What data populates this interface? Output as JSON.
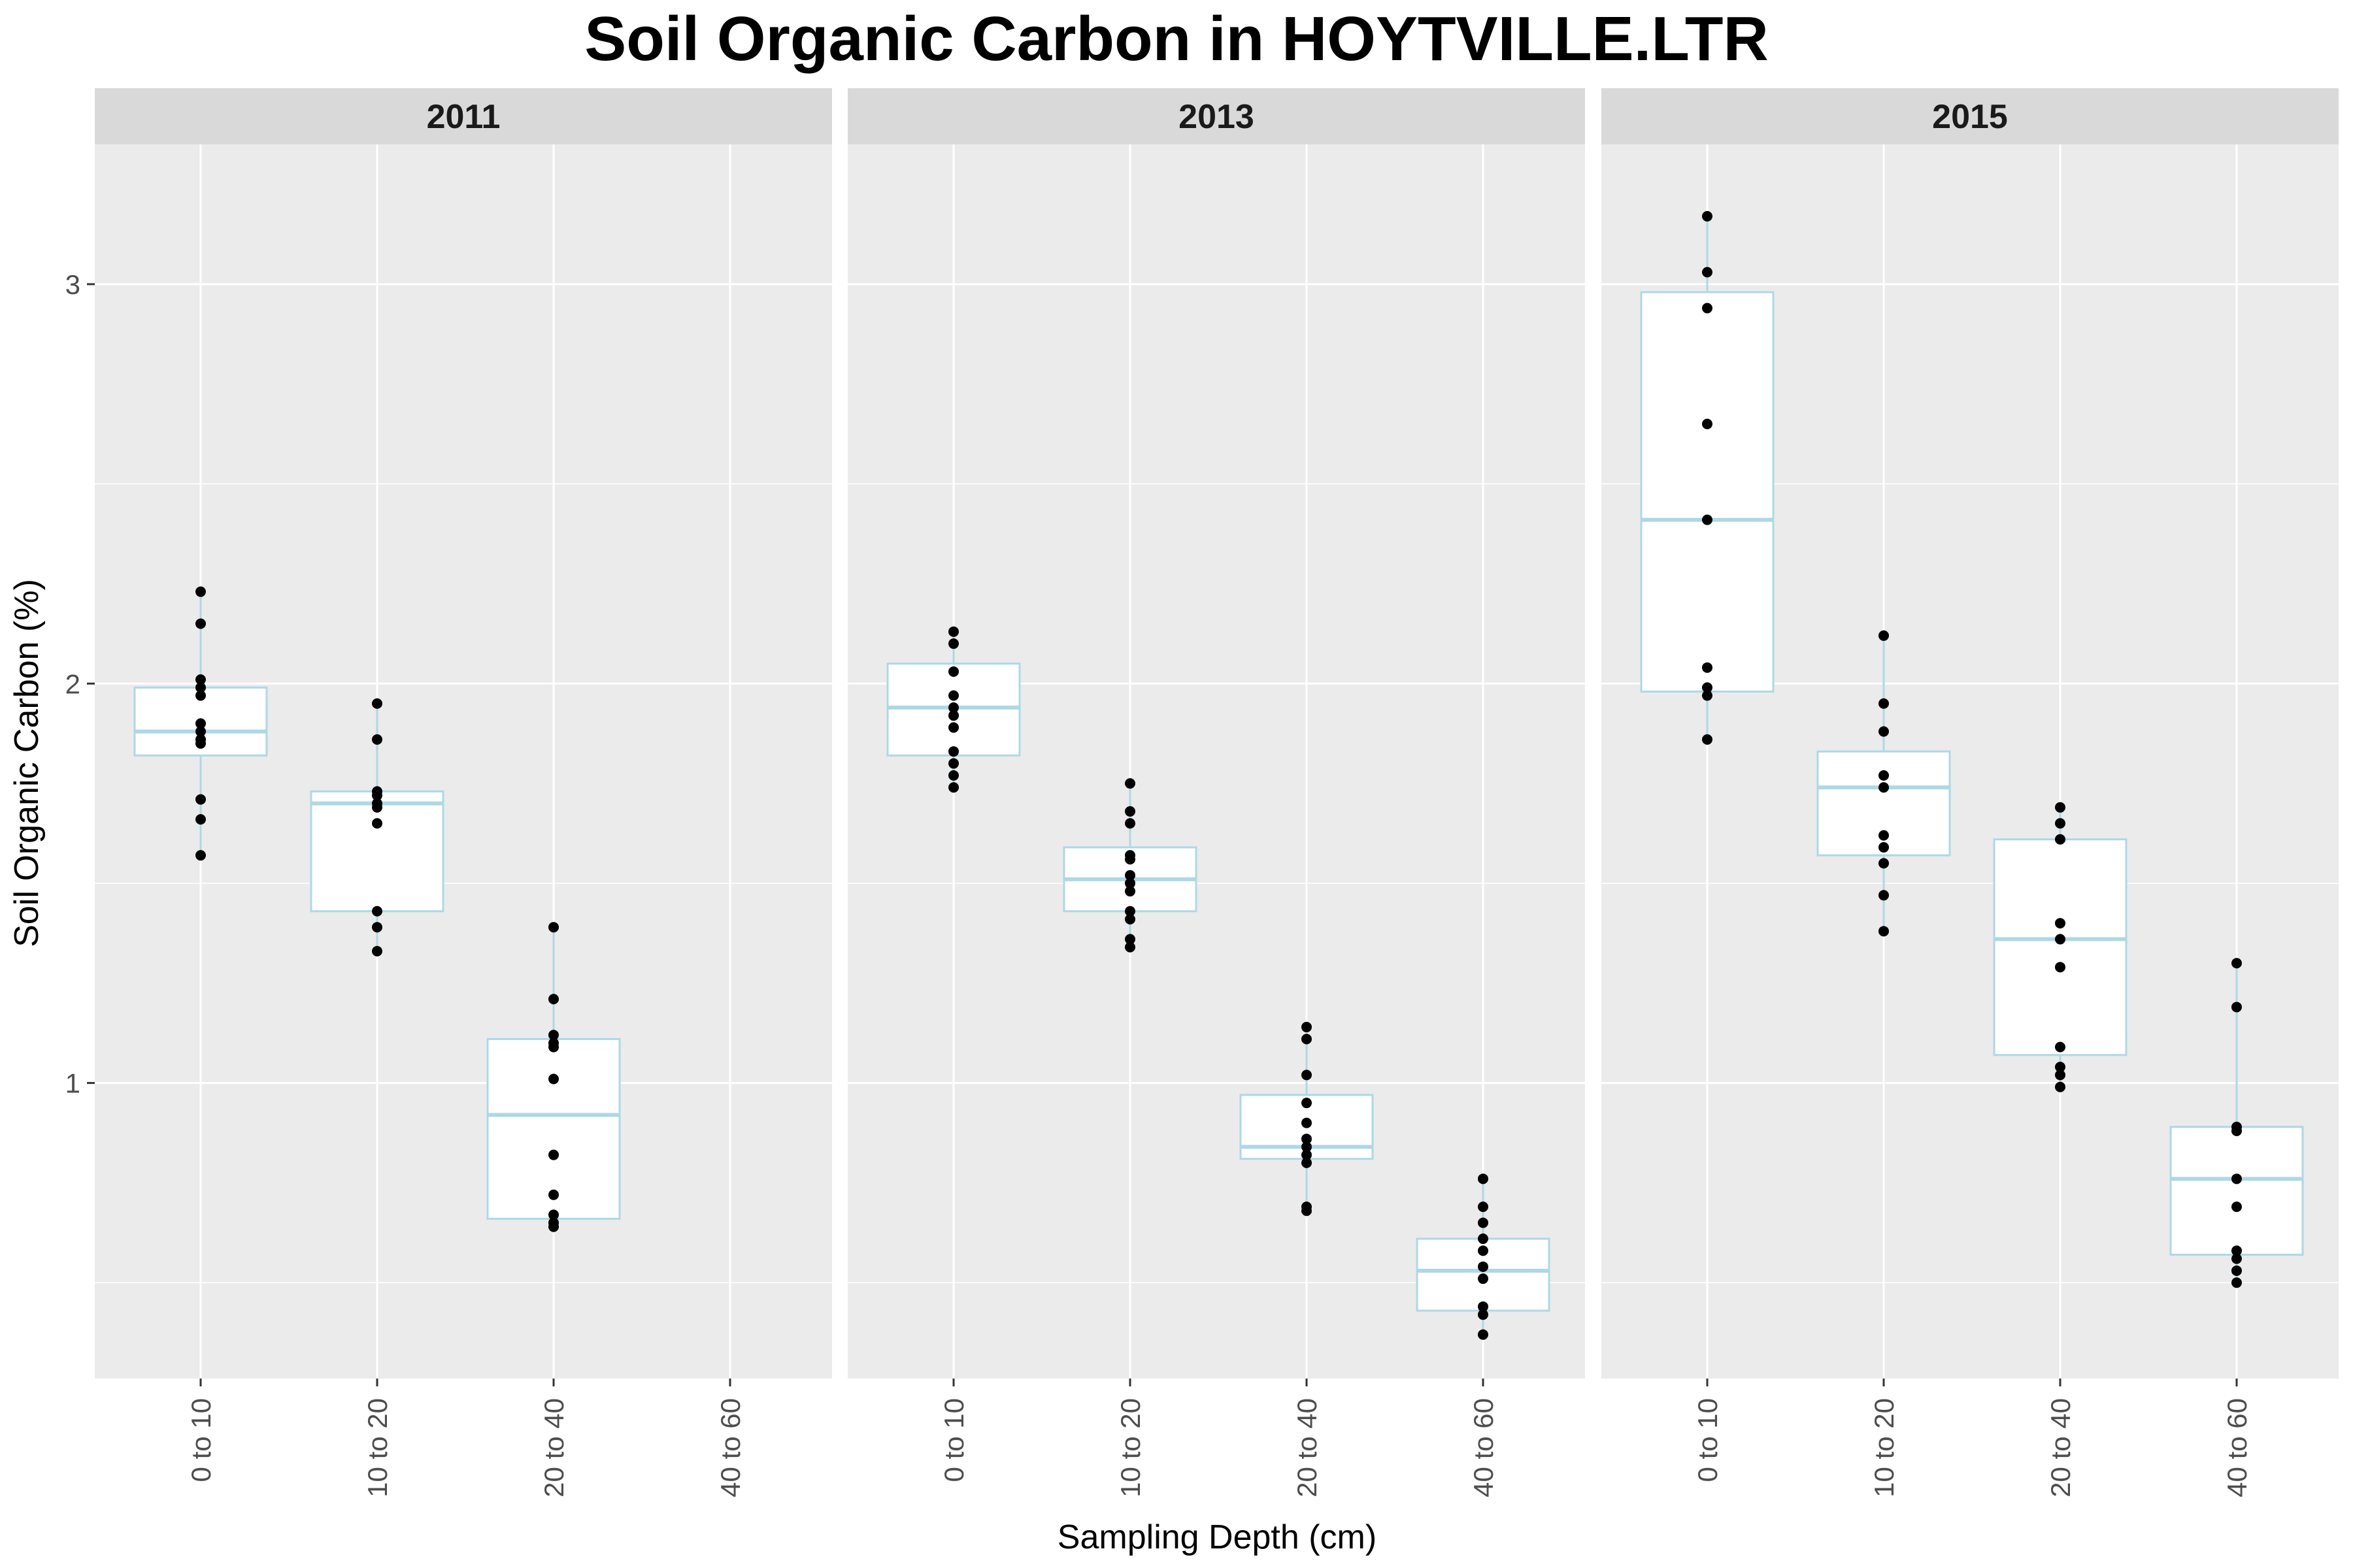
{
  "chart_data": {
    "type": "boxplot",
    "title": "Soil Organic Carbon in HOYTVILLE.LTR",
    "xlabel": "Sampling Depth (cm)",
    "ylabel": "Soil Organic Carbon (%)",
    "categories": [
      "0 to 10",
      "10 to 20",
      "20 to 40",
      "40 to 60"
    ],
    "ylim": [
      0.26,
      3.35
    ],
    "yticks": [
      1,
      2,
      3
    ],
    "colors": {
      "panel_background": "#ebebeb",
      "strip_background": "#d9d9d9",
      "gridline": "#ffffff",
      "box_outline": "#add8e6",
      "box_fill": "#ffffff",
      "points": "#000000"
    },
    "panels": [
      {
        "facet": "2011",
        "boxes": [
          {
            "category": "0 to 10",
            "lower_whisker": 1.57,
            "q1": 1.82,
            "median": 1.88,
            "q3": 1.99,
            "upper_whisker": 2.23,
            "points": [
              2.23,
              2.15,
              2.01,
              1.99,
              1.97,
              1.9,
              1.88,
              1.86,
              1.85,
              1.71,
              1.66,
              1.57
            ]
          },
          {
            "category": "10 to 20",
            "lower_whisker": 1.33,
            "q1": 1.43,
            "median": 1.7,
            "q3": 1.73,
            "upper_whisker": 1.95,
            "points": [
              1.95,
              1.86,
              1.73,
              1.72,
              1.7,
              1.69,
              1.65,
              1.43,
              1.39,
              1.33
            ]
          },
          {
            "category": "20 to 40",
            "lower_whisker": 0.64,
            "q1": 0.66,
            "median": 0.92,
            "q3": 1.11,
            "upper_whisker": 1.39,
            "points": [
              1.39,
              1.21,
              1.12,
              1.1,
              1.09,
              1.01,
              0.82,
              0.72,
              0.67,
              0.65,
              0.64
            ]
          },
          {
            "category": "40 to 60",
            "points": []
          }
        ]
      },
      {
        "facet": "2013",
        "boxes": [
          {
            "category": "0 to 10",
            "lower_whisker": 1.74,
            "q1": 1.82,
            "median": 1.94,
            "q3": 2.05,
            "upper_whisker": 2.13,
            "points": [
              2.13,
              2.1,
              2.03,
              1.97,
              1.94,
              1.92,
              1.89,
              1.83,
              1.8,
              1.77,
              1.74
            ]
          },
          {
            "category": "10 to 20",
            "lower_whisker": 1.34,
            "q1": 1.43,
            "median": 1.51,
            "q3": 1.59,
            "upper_whisker": 1.75,
            "points": [
              1.75,
              1.68,
              1.65,
              1.57,
              1.56,
              1.52,
              1.5,
              1.48,
              1.43,
              1.41,
              1.36,
              1.34
            ]
          },
          {
            "category": "20 to 40",
            "lower_whisker": 0.68,
            "q1": 0.81,
            "median": 0.84,
            "q3": 0.97,
            "upper_whisker": 1.14,
            "points": [
              1.14,
              1.11,
              1.02,
              0.95,
              0.9,
              0.86,
              0.84,
              0.82,
              0.8,
              0.69,
              0.68
            ]
          },
          {
            "category": "40 to 60",
            "lower_whisker": 0.37,
            "q1": 0.43,
            "median": 0.53,
            "q3": 0.61,
            "upper_whisker": 0.76,
            "points": [
              0.76,
              0.69,
              0.65,
              0.61,
              0.58,
              0.54,
              0.51,
              0.44,
              0.42,
              0.37
            ]
          }
        ]
      },
      {
        "facet": "2015",
        "boxes": [
          {
            "category": "0 to 10",
            "lower_whisker": 1.86,
            "q1": 1.98,
            "median": 2.41,
            "q3": 2.98,
            "upper_whisker": 3.17,
            "points": [
              3.17,
              3.03,
              2.94,
              2.65,
              2.41,
              2.04,
              1.99,
              1.97,
              1.86
            ]
          },
          {
            "category": "10 to 20",
            "lower_whisker": 1.38,
            "q1": 1.57,
            "median": 1.74,
            "q3": 1.83,
            "upper_whisker": 2.12,
            "points": [
              2.12,
              1.95,
              1.88,
              1.77,
              1.74,
              1.62,
              1.59,
              1.55,
              1.47,
              1.38
            ]
          },
          {
            "category": "20 to 40",
            "lower_whisker": 0.99,
            "q1": 1.07,
            "median": 1.36,
            "q3": 1.61,
            "upper_whisker": 1.69,
            "points": [
              1.69,
              1.65,
              1.61,
              1.4,
              1.36,
              1.29,
              1.09,
              1.04,
              1.02,
              0.99
            ]
          },
          {
            "category": "40 to 60",
            "lower_whisker": 0.5,
            "q1": 0.57,
            "median": 0.76,
            "q3": 0.89,
            "upper_whisker": 1.3,
            "points": [
              1.3,
              1.19,
              0.89,
              0.88,
              0.76,
              0.69,
              0.58,
              0.56,
              0.53,
              0.5
            ]
          }
        ]
      }
    ]
  }
}
